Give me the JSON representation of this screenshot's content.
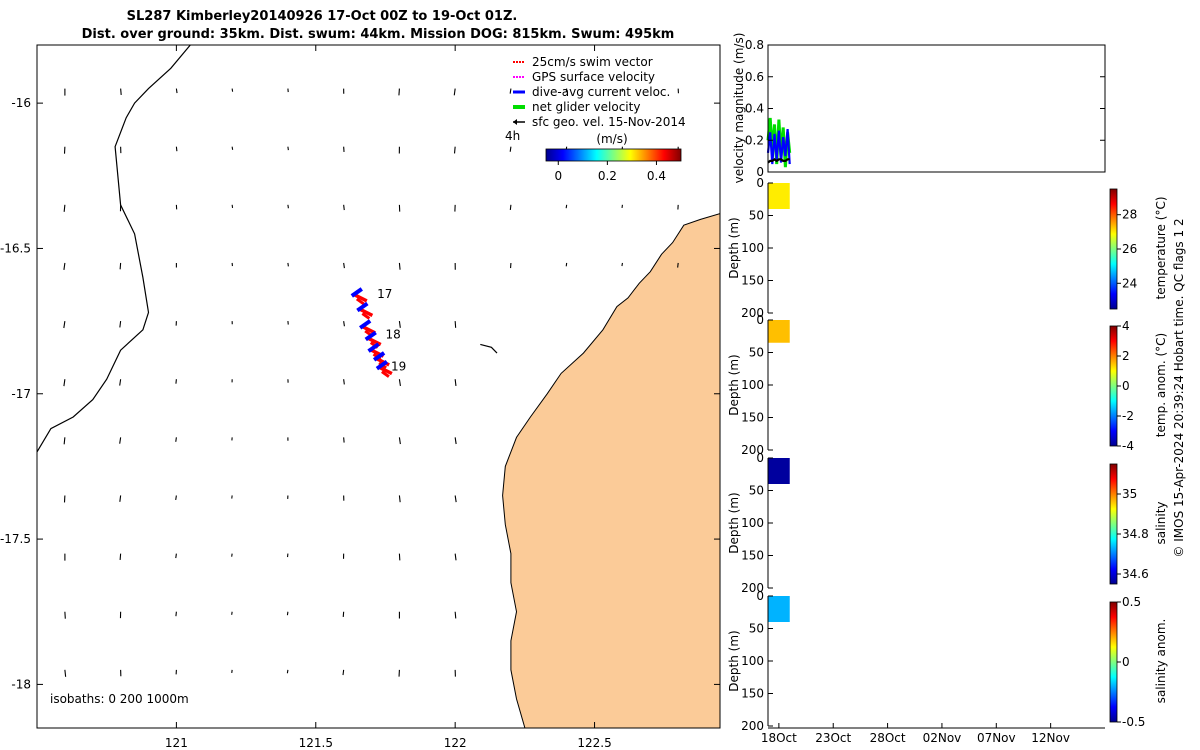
{
  "title": {
    "line1": "SL287 Kimberley20140926 17-Oct 00Z to 19-Oct 01Z.",
    "line2": "Dist. over ground: 35km. Dist. swum: 44km. Mission DOG: 815km. Swum: 495km"
  },
  "colors": {
    "land": "#fbcb98",
    "swim": "#ff0000",
    "gps": "#ff00ff",
    "current": "#0000ff",
    "net": "#00dd00",
    "sfc": "#000000",
    "coast": "#000000"
  },
  "chart_data": [
    {
      "type": "map",
      "xlim": [
        120.5,
        122.95
      ],
      "ylim": [
        -18.15,
        -15.8
      ],
      "x_ticks": [
        "121",
        "121.5",
        "122",
        "122.5"
      ],
      "y_ticks": [
        "-16",
        "-16.5",
        "-17",
        "-17.5",
        "-18"
      ],
      "legend": {
        "items": [
          "25cm/s swim vector",
          "GPS surface velocity",
          "dive-avg current veloc.",
          "net glider velocity",
          "sfc geo. vel. 15-Nov-2014"
        ],
        "interval_label": "4h"
      },
      "colorbar": {
        "label": "(m/s)",
        "ticks": [
          "0",
          "0.2",
          "0.4"
        ],
        "range": [
          -0.05,
          0.5
        ]
      },
      "isobaths_label": "isobaths: 0   200  1000m",
      "day_labels": [
        {
          "text": "17",
          "lon": 121.72,
          "lat": -16.67
        },
        {
          "text": "18",
          "lon": 121.75,
          "lat": -16.81
        },
        {
          "text": "19",
          "lon": 121.77,
          "lat": -16.92
        }
      ],
      "track": [
        [
          121.64,
          -16.66
        ],
        [
          121.66,
          -16.71
        ],
        [
          121.67,
          -16.77
        ],
        [
          121.69,
          -16.81
        ],
        [
          121.7,
          -16.85
        ],
        [
          121.72,
          -16.88
        ],
        [
          121.73,
          -16.91
        ]
      ],
      "isobath_200m": [
        [
          121.05,
          -15.8
        ],
        [
          120.98,
          -15.88
        ],
        [
          120.9,
          -15.95
        ],
        [
          120.85,
          -16.0
        ],
        [
          120.82,
          -16.05
        ],
        [
          120.78,
          -16.15
        ],
        [
          120.8,
          -16.35
        ],
        [
          120.85,
          -16.45
        ],
        [
          120.88,
          -16.6
        ],
        [
          120.9,
          -16.72
        ],
        [
          120.88,
          -16.78
        ],
        [
          120.8,
          -16.85
        ],
        [
          120.75,
          -16.95
        ],
        [
          120.7,
          -17.02
        ],
        [
          120.63,
          -17.08
        ],
        [
          120.55,
          -17.12
        ],
        [
          120.5,
          -17.2
        ]
      ],
      "coastline": [
        [
          122.95,
          -16.38
        ],
        [
          122.88,
          -16.4
        ],
        [
          122.82,
          -16.42
        ],
        [
          122.78,
          -16.48
        ],
        [
          122.74,
          -16.52
        ],
        [
          122.7,
          -16.58
        ],
        [
          122.66,
          -16.62
        ],
        [
          122.62,
          -16.67
        ],
        [
          122.58,
          -16.7
        ],
        [
          122.53,
          -16.78
        ],
        [
          122.46,
          -16.86
        ],
        [
          122.38,
          -16.93
        ],
        [
          122.33,
          -17.0
        ],
        [
          122.27,
          -17.08
        ],
        [
          122.22,
          -17.15
        ],
        [
          122.18,
          -17.25
        ],
        [
          122.17,
          -17.35
        ],
        [
          122.18,
          -17.45
        ],
        [
          122.2,
          -17.55
        ],
        [
          122.2,
          -17.65
        ],
        [
          122.22,
          -17.75
        ],
        [
          122.2,
          -17.85
        ],
        [
          122.2,
          -17.95
        ],
        [
          122.22,
          -18.05
        ],
        [
          122.25,
          -18.15
        ]
      ],
      "island": [
        [
          122.09,
          -16.83
        ],
        [
          122.13,
          -16.84
        ],
        [
          122.15,
          -16.86
        ]
      ]
    },
    {
      "type": "line",
      "ylabel": "velocity magnitude (m/s)",
      "ylim": [
        0,
        0.8
      ],
      "y_ticks": [
        "0",
        "0.2",
        "0.4",
        "0.6",
        "0.8"
      ],
      "series": [
        {
          "name": "net glider velocity",
          "values": [
            0.2,
            0.34,
            0.12,
            0.3,
            0.05,
            0.33,
            0.1,
            0.28,
            0.03,
            0.25,
            0.12
          ]
        },
        {
          "name": "dive-avg current veloc.",
          "values": [
            0.12,
            0.25,
            0.05,
            0.24,
            0.08,
            0.26,
            0.06,
            0.22,
            0.1,
            0.27,
            0.05
          ]
        },
        {
          "name": "sfc geo. vel.",
          "values": [
            0.06,
            0.07,
            0.07,
            0.08,
            0.07,
            0.08,
            0.08,
            0.07,
            0.07,
            0.08,
            0.08
          ]
        }
      ]
    },
    {
      "type": "heatmap",
      "ylabel": "Depth (m)",
      "ylim": [
        200,
        0
      ],
      "y_ticks": [
        "0",
        "50",
        "100",
        "150",
        "200"
      ],
      "cbar_label": "temperature (°C)",
      "cbar_ticks": [
        "28",
        "26",
        "24"
      ],
      "cbar_range": [
        22.5,
        29.5
      ],
      "value": 27.0,
      "depth_extent": [
        0,
        40
      ]
    },
    {
      "type": "heatmap",
      "ylabel": "Depth (m)",
      "ylim": [
        200,
        0
      ],
      "y_ticks": [
        "0",
        "50",
        "100",
        "150",
        "200"
      ],
      "cbar_label": "temp. anom. (°C)",
      "cbar_ticks": [
        "4",
        "2",
        "0",
        "-2",
        "-4"
      ],
      "cbar_range": [
        -4,
        4
      ],
      "value": 1.5,
      "depth_extent": [
        0,
        35
      ]
    },
    {
      "type": "heatmap",
      "ylabel": "Depth (m)",
      "ylim": [
        200,
        0
      ],
      "y_ticks": [
        "0",
        "50",
        "100",
        "150",
        "200"
      ],
      "cbar_label": "salinity",
      "cbar_ticks": [
        "35",
        "34.8",
        "34.6"
      ],
      "cbar_range": [
        34.55,
        35.15
      ],
      "value": 34.56,
      "depth_extent": [
        0,
        40
      ]
    },
    {
      "type": "heatmap",
      "ylabel": "Depth (m)",
      "ylim": [
        200,
        0
      ],
      "y_ticks": [
        "0",
        "50",
        "100",
        "150",
        "200"
      ],
      "cbar_label": "salinity anom.",
      "cbar_ticks": [
        "0.5",
        "0",
        "-0.5"
      ],
      "cbar_range": [
        -0.5,
        0.5
      ],
      "value": -0.2,
      "depth_extent": [
        0,
        40
      ]
    }
  ],
  "time_axis": {
    "ticks": [
      "18Oct",
      "23Oct",
      "28Oct",
      "02Nov",
      "07Nov",
      "12Nov"
    ],
    "tick_days": [
      1,
      6,
      11,
      16,
      21,
      26
    ],
    "range_days": [
      0,
      31
    ],
    "data_days": [
      0,
      2
    ]
  },
  "footer": "© IMOS 15-Apr-2024 20:39:24 Hobart time. QC flags 1  2"
}
